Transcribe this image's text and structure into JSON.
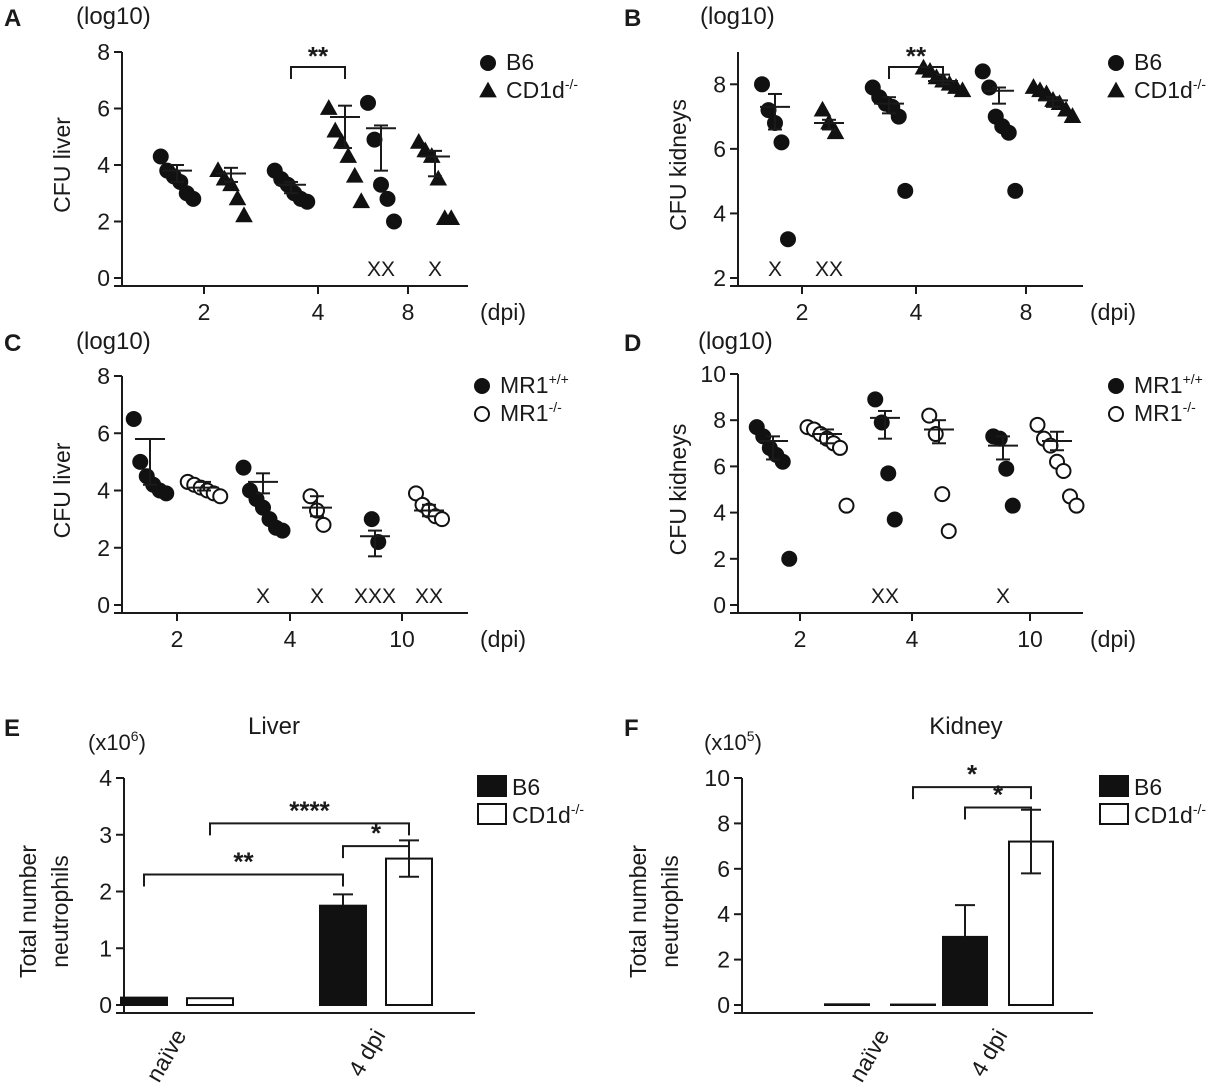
{
  "chart_data": [
    {
      "panel": "A",
      "type": "scatter",
      "unit_label": "(log10)",
      "ylabel": "CFU liver",
      "xlabel": "(dpi)",
      "ylim": [
        0,
        8
      ],
      "yticks": [
        "0",
        "2",
        "4",
        "6",
        "8"
      ],
      "categories": [
        "2",
        "4",
        "8"
      ],
      "legend": [
        {
          "name": "B6",
          "marker": "circle"
        },
        {
          "name": "CD1d",
          "sup": "-/-",
          "marker": "triangle"
        }
      ],
      "series": [
        {
          "name": "B6",
          "marker": "circle",
          "groups": [
            {
              "category": "2",
              "points": [
                4.3,
                3.8,
                3.6,
                3.4,
                3.0,
                2.8
              ],
              "mean": 3.8,
              "sem_low": 3.4,
              "sem_high": 4.0,
              "excluded": ""
            },
            {
              "category": "4",
              "points": [
                3.8,
                3.5,
                3.3,
                3.0,
                2.8,
                2.7
              ],
              "mean": 3.3,
              "sem_low": 3.0,
              "sem_high": 3.4,
              "excluded": ""
            },
            {
              "category": "8",
              "points": [
                6.2,
                4.9,
                3.3,
                2.8,
                2.0
              ],
              "mean": 5.3,
              "sem_low": 3.8,
              "sem_high": 5.4,
              "excluded": "XX"
            }
          ]
        },
        {
          "name": "CD1d-/-",
          "marker": "triangle",
          "groups": [
            {
              "category": "2",
              "points": [
                3.8,
                3.5,
                3.3,
                2.8,
                2.2
              ],
              "mean": 3.7,
              "sem_low": 3.4,
              "sem_high": 3.9,
              "excluded": ""
            },
            {
              "category": "4",
              "points": [
                6.0,
                5.2,
                4.8,
                4.3,
                3.6,
                2.7
              ],
              "mean": 5.7,
              "sem_low": 4.6,
              "sem_high": 6.1,
              "excluded": ""
            },
            {
              "category": "8",
              "points": [
                4.8,
                4.5,
                4.3,
                3.5,
                2.1,
                2.1
              ],
              "mean": 4.3,
              "sem_low": 3.6,
              "sem_high": 4.5,
              "excluded": "X"
            }
          ]
        }
      ],
      "significance": [
        {
          "text": "**",
          "category": "4"
        }
      ]
    },
    {
      "panel": "B",
      "type": "scatter",
      "unit_label": "(log10)",
      "ylabel": "CFU kidneys",
      "xlabel": "(dpi)",
      "ylim": [
        2,
        9
      ],
      "yticks": [
        "2",
        "4",
        "6",
        "8"
      ],
      "categories": [
        "2",
        "4",
        "8"
      ],
      "legend": [
        {
          "name": "B6",
          "marker": "circle"
        },
        {
          "name": "CD1d",
          "sup": "-/-",
          "marker": "triangle"
        }
      ],
      "series": [
        {
          "name": "B6",
          "marker": "circle",
          "groups": [
            {
              "category": "2",
              "points": [
                8.0,
                7.2,
                6.8,
                6.2,
                3.2
              ],
              "mean": 7.3,
              "sem_low": 6.6,
              "sem_high": 7.7,
              "excluded": "X"
            },
            {
              "category": "4",
              "points": [
                7.9,
                7.6,
                7.4,
                7.3,
                7.0,
                4.7
              ],
              "mean": 7.4,
              "sem_low": 7.1,
              "sem_high": 7.6,
              "excluded": ""
            },
            {
              "category": "8",
              "points": [
                8.4,
                7.9,
                7.0,
                6.7,
                6.5,
                4.7
              ],
              "mean": 7.8,
              "sem_low": 7.4,
              "sem_high": 7.9,
              "excluded": ""
            }
          ]
        },
        {
          "name": "CD1d-/-",
          "marker": "triangle",
          "groups": [
            {
              "category": "2",
              "points": [
                7.2,
                6.8,
                6.5
              ],
              "mean": 6.8,
              "sem_low": 6.6,
              "sem_high": 6.9,
              "excluded": "XX"
            },
            {
              "category": "4",
              "points": [
                8.5,
                8.4,
                8.2,
                8.1,
                8.0,
                7.9,
                7.8
              ],
              "mean": 8.1,
              "sem_low": 8.0,
              "sem_high": 8.3,
              "excluded": ""
            },
            {
              "category": "8",
              "points": [
                7.9,
                7.8,
                7.7,
                7.5,
                7.4,
                7.2,
                7.0
              ],
              "mean": 7.5,
              "sem_low": 7.3,
              "sem_high": 7.6,
              "excluded": ""
            }
          ]
        }
      ],
      "significance": [
        {
          "text": "**",
          "category": "4"
        }
      ]
    },
    {
      "panel": "C",
      "type": "scatter",
      "unit_label": "(log10)",
      "ylabel": "CFU liver",
      "xlabel": "(dpi)",
      "ylim": [
        0,
        8
      ],
      "yticks": [
        "0",
        "2",
        "4",
        "6",
        "8"
      ],
      "categories": [
        "2",
        "4",
        "10"
      ],
      "legend": [
        {
          "name": "MR1",
          "sup": "+/+",
          "marker": "circle"
        },
        {
          "name": "MR1",
          "sup": "-/-",
          "marker": "open-circle"
        }
      ],
      "series": [
        {
          "name": "MR1+/+",
          "marker": "circle",
          "groups": [
            {
              "category": "2",
              "points": [
                6.5,
                5.0,
                4.5,
                4.2,
                4.0,
                3.9
              ],
              "mean": 5.8,
              "sem_low": 4.2,
              "sem_high": 5.8,
              "excluded": ""
            },
            {
              "category": "4",
              "points": [
                4.8,
                4.0,
                3.7,
                3.4,
                3.0,
                2.7,
                2.6
              ],
              "mean": 4.3,
              "sem_low": 3.9,
              "sem_high": 4.6,
              "excluded": "X"
            },
            {
              "category": "10",
              "points": [
                3.0,
                2.2
              ],
              "mean": 2.4,
              "sem_low": 1.7,
              "sem_high": 2.6,
              "excluded": "XXX"
            }
          ]
        },
        {
          "name": "MR1-/-",
          "marker": "open-circle",
          "groups": [
            {
              "category": "2",
              "points": [
                4.3,
                4.2,
                4.1,
                4.0,
                3.9,
                3.8
              ],
              "mean": 4.1,
              "sem_low": 4.0,
              "sem_high": 4.3,
              "excluded": ""
            },
            {
              "category": "4",
              "points": [
                3.8,
                3.3,
                2.8
              ],
              "mean": 3.4,
              "sem_low": 3.1,
              "sem_high": 3.8,
              "excluded": "X"
            },
            {
              "category": "10",
              "points": [
                3.9,
                3.5,
                3.3,
                3.1,
                3.0
              ],
              "mean": 3.3,
              "sem_low": 3.1,
              "sem_high": 3.5,
              "excluded": "XX"
            }
          ]
        }
      ],
      "significance": []
    },
    {
      "panel": "D",
      "type": "scatter",
      "unit_label": "(log10)",
      "ylabel": "CFU kidneys",
      "xlabel": "(dpi)",
      "ylim": [
        0,
        10
      ],
      "yticks": [
        "0",
        "2",
        "4",
        "6",
        "8",
        "10"
      ],
      "categories": [
        "2",
        "4",
        "10"
      ],
      "legend": [
        {
          "name": "MR1",
          "sup": "+/+",
          "marker": "circle"
        },
        {
          "name": "MR1",
          "sup": "-/-",
          "marker": "open-circle"
        }
      ],
      "series": [
        {
          "name": "MR1+/+",
          "marker": "circle",
          "groups": [
            {
              "category": "2",
              "points": [
                7.7,
                7.3,
                6.8,
                6.5,
                6.2,
                2.0
              ],
              "mean": 7.1,
              "sem_low": 6.3,
              "sem_high": 7.3,
              "excluded": ""
            },
            {
              "category": "4",
              "points": [
                8.9,
                7.9,
                5.7,
                3.7
              ],
              "mean": 8.1,
              "sem_low": 7.2,
              "sem_high": 8.4,
              "excluded": "XX"
            },
            {
              "category": "10",
              "points": [
                7.3,
                7.2,
                5.9,
                4.3
              ],
              "mean": 6.9,
              "sem_low": 6.3,
              "sem_high": 7.3,
              "excluded": "X"
            }
          ]
        },
        {
          "name": "MR1-/-",
          "marker": "open-circle",
          "groups": [
            {
              "category": "2",
              "points": [
                7.7,
                7.6,
                7.4,
                7.2,
                7.0,
                6.8,
                4.3
              ],
              "mean": 7.4,
              "sem_low": 7.0,
              "sem_high": 7.6,
              "excluded": ""
            },
            {
              "category": "4",
              "points": [
                8.2,
                7.4,
                4.8,
                3.2
              ],
              "mean": 7.6,
              "sem_low": 7.0,
              "sem_high": 8.0,
              "excluded": ""
            },
            {
              "category": "10",
              "points": [
                7.8,
                7.2,
                6.9,
                6.2,
                5.8,
                4.7,
                4.3
              ],
              "mean": 7.1,
              "sem_low": 6.7,
              "sem_high": 7.5,
              "excluded": ""
            }
          ]
        }
      ],
      "significance": []
    },
    {
      "panel": "E",
      "type": "bar",
      "title": "Liver",
      "unit_label": "(x10",
      "unit_exp": "6",
      "unit_close": ")",
      "ylabel": [
        "Total number",
        "neutrophils"
      ],
      "ylim": [
        0,
        4
      ],
      "yticks": [
        "0",
        "1",
        "2",
        "3",
        "4"
      ],
      "categories": [
        "naïve",
        "4 dpi"
      ],
      "legend": [
        {
          "name": "B6",
          "fill": "black"
        },
        {
          "name": "CD1d",
          "sup": "-/-",
          "fill": "white"
        }
      ],
      "series": [
        {
          "name": "B6",
          "fill": "black",
          "values": [
            0.13,
            1.75
          ],
          "errors": [
            0.02,
            0.2
          ]
        },
        {
          "name": "CD1d-/-",
          "fill": "white",
          "values": [
            0.12,
            2.58
          ],
          "errors": [
            0.01,
            0.32
          ]
        }
      ],
      "significance": [
        {
          "text": "**",
          "from": [
            0,
            0
          ],
          "to": [
            1,
            0
          ],
          "y": 2.3
        },
        {
          "text": "****",
          "from": [
            0,
            1
          ],
          "to": [
            1,
            1
          ],
          "y": 3.2
        },
        {
          "text": "*",
          "from": [
            1,
            0
          ],
          "to": [
            1,
            1
          ],
          "y": 2.8
        }
      ]
    },
    {
      "panel": "F",
      "type": "bar",
      "title": "Kidney",
      "unit_label": "(x10",
      "unit_exp": "5",
      "unit_close": ")",
      "ylabel": [
        "Total number",
        "neutrophils"
      ],
      "ylim": [
        0,
        10
      ],
      "yticks": [
        "0",
        "2",
        "4",
        "6",
        "8",
        "10"
      ],
      "categories": [
        "naïve",
        "4 dpi"
      ],
      "legend": [
        {
          "name": "B6",
          "fill": "black"
        },
        {
          "name": "CD1d",
          "sup": "-/-",
          "fill": "white"
        }
      ],
      "series": [
        {
          "name": "B6",
          "fill": "black",
          "values": [
            0.03,
            3.0
          ],
          "errors": [
            0.01,
            1.4
          ]
        },
        {
          "name": "CD1d-/-",
          "fill": "white",
          "values": [
            0.02,
            7.2
          ],
          "errors": [
            0.01,
            1.4
          ]
        }
      ],
      "significance": [
        {
          "text": "*",
          "from": [
            0,
            1
          ],
          "to": [
            1,
            1
          ],
          "y": 9.6
        },
        {
          "text": "*",
          "from": [
            1,
            0
          ],
          "to": [
            1,
            1
          ],
          "y": 8.7
        }
      ]
    }
  ]
}
